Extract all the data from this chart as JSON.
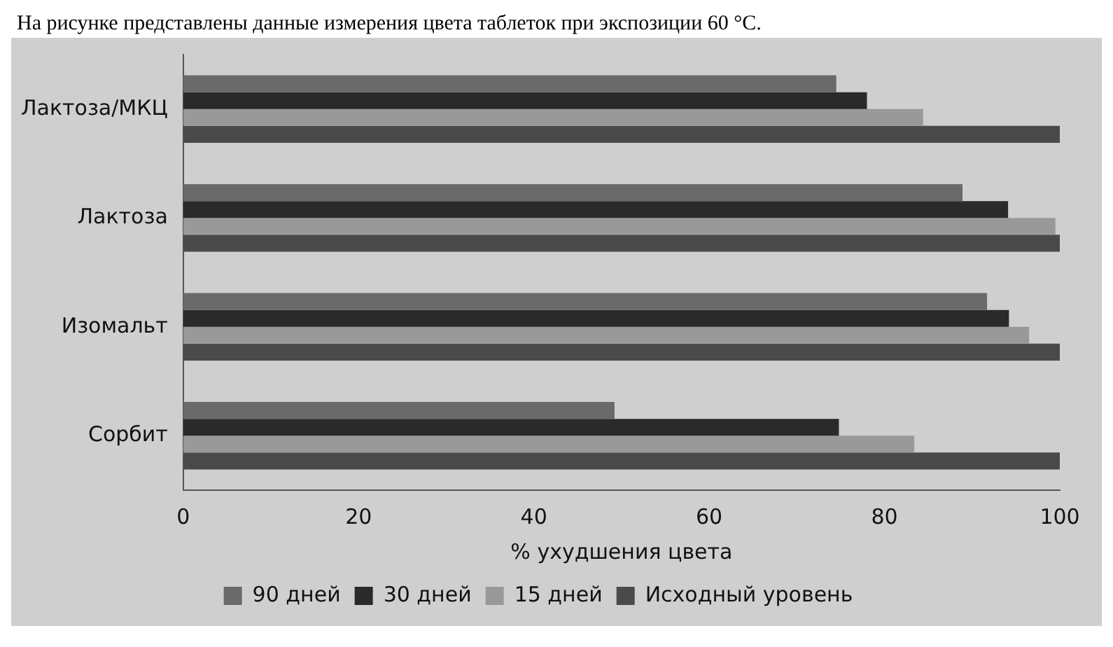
{
  "chart_data": {
    "type": "bar",
    "orientation": "horizontal",
    "annotations": [
      "На рисунке представлены данные измерения цвета таблеток при экспозиции 60 °С."
    ],
    "xlabel": "% ухудшения цвета",
    "categories": [
      "Лактоза/МКЦ",
      "Лактоза",
      "Изомальт",
      "Сорбит"
    ],
    "series": [
      {
        "name": "90 дней",
        "color": "#6a6a6a",
        "values": [
          74.5,
          88.9,
          91.7,
          49.2
        ]
      },
      {
        "name": "30 дней",
        "color": "#2a2a2a",
        "values": [
          78,
          94.1,
          94.2,
          74.8
        ]
      },
      {
        "name": "15 дней",
        "color": "#999999",
        "values": [
          84.4,
          99.5,
          96.5,
          83.4
        ]
      },
      {
        "name": "Исходный уровень",
        "color": "#4a4a4a",
        "values": [
          100,
          100,
          100,
          100
        ]
      }
    ],
    "xlim": [
      0,
      100
    ],
    "xticks": [
      0,
      20,
      40,
      60,
      80,
      100
    ],
    "grid": false,
    "legend": "bottom"
  }
}
